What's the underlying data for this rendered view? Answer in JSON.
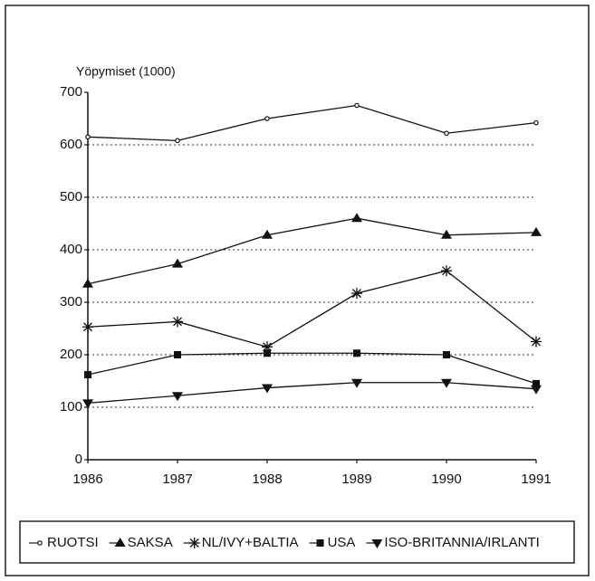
{
  "chart_data": {
    "type": "line",
    "title": "Yöpymiset (1000)",
    "categories": [
      "1986",
      "1987",
      "1988",
      "1989",
      "1990",
      "1991"
    ],
    "series": [
      {
        "name": "RUOTSI",
        "color": "#111111",
        "marker": "circle",
        "values": [
          615,
          608,
          650,
          675,
          622,
          642
        ]
      },
      {
        "name": "SAKSA",
        "color": "#111111",
        "marker": "triangle-up",
        "values": [
          335,
          373,
          428,
          460,
          428,
          433
        ]
      },
      {
        "name": "NL/IVY+BALTIA",
        "color": "#111111",
        "marker": "asterisk",
        "values": [
          253,
          263,
          215,
          317,
          360,
          225
        ]
      },
      {
        "name": "USA",
        "color": "#111111",
        "marker": "square",
        "values": [
          162,
          200,
          203,
          203,
          200,
          145
        ]
      },
      {
        "name": "ISO-BRITANNIA/IRLANTI",
        "color": "#111111",
        "marker": "triangle-down",
        "values": [
          108,
          122,
          137,
          147,
          147,
          135
        ]
      }
    ],
    "ylim": [
      0,
      700
    ],
    "yticks": [
      0,
      100,
      200,
      300,
      400,
      500,
      600,
      700
    ],
    "grid": true,
    "legend": "bottom"
  }
}
